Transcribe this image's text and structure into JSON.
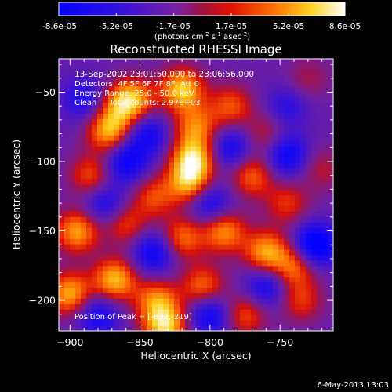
{
  "colorbar": {
    "tick_labels": [
      "-8.6e-05",
      "-5.2e-05",
      "-1.7e-05",
      "1.7e-05",
      "5.2e-05",
      "8.6e-05"
    ],
    "units_prefix": "(photons cm",
    "units_exp1": "-2",
    "units_mid": " s",
    "units_exp2": "-1",
    "units_mid2": " asec",
    "units_exp3": "-2",
    "units_suffix": ")",
    "range": [
      -8.6e-05,
      8.6e-05
    ]
  },
  "chart_data": {
    "type": "heatmap",
    "title": "Reconstructed RHESSI Image",
    "xlabel": "Heliocentric X (arcsec)",
    "ylabel": "Heliocentric Y (arcsec)",
    "xlim": [
      -908,
      -712
    ],
    "ylim": [
      -222,
      -26
    ],
    "x_ticks": [
      -900,
      -850,
      -800,
      -750
    ],
    "y_ticks": [
      -50,
      -100,
      -150,
      -200
    ],
    "x_tick_labels": [
      "−900",
      "−850",
      "−800",
      "−750"
    ],
    "y_tick_labels": [
      "−50",
      "−100",
      "−150",
      "−200"
    ],
    "peak_position": [
      -832,
      -219
    ],
    "colormap": "RHESSI color table (blue-purple-red-orange-yellow-white)",
    "blobs": [
      {
        "x": -872,
        "y": -78,
        "v": 0.9
      },
      {
        "x": -865,
        "y": -60,
        "v": 0.5
      },
      {
        "x": -855,
        "y": -55,
        "v": 0.8
      },
      {
        "x": -820,
        "y": -48,
        "v": 1.0
      },
      {
        "x": -810,
        "y": -75,
        "v": 0.7
      },
      {
        "x": -785,
        "y": -60,
        "v": 0.6
      },
      {
        "x": -760,
        "y": -80,
        "v": 0.4
      },
      {
        "x": -730,
        "y": -40,
        "v": 0.3
      },
      {
        "x": -812,
        "y": -98,
        "v": 1.0
      },
      {
        "x": -815,
        "y": -115,
        "v": 0.85
      },
      {
        "x": -840,
        "y": -125,
        "v": 0.55
      },
      {
        "x": -885,
        "y": -110,
        "v": 0.6
      },
      {
        "x": -770,
        "y": -110,
        "v": 0.65
      },
      {
        "x": -745,
        "y": -130,
        "v": 0.5
      },
      {
        "x": -720,
        "y": -105,
        "v": 0.35
      },
      {
        "x": -895,
        "y": -150,
        "v": 0.85
      },
      {
        "x": -860,
        "y": -145,
        "v": 0.55
      },
      {
        "x": -820,
        "y": -155,
        "v": 0.7
      },
      {
        "x": -790,
        "y": -150,
        "v": 0.8
      },
      {
        "x": -760,
        "y": -165,
        "v": 0.85
      },
      {
        "x": -740,
        "y": -175,
        "v": 0.7
      },
      {
        "x": -900,
        "y": -195,
        "v": 0.9
      },
      {
        "x": -868,
        "y": -185,
        "v": 0.95
      },
      {
        "x": -838,
        "y": -200,
        "v": 0.75
      },
      {
        "x": -832,
        "y": -219,
        "v": 1.0
      },
      {
        "x": -805,
        "y": -190,
        "v": 0.7
      },
      {
        "x": -775,
        "y": -210,
        "v": 0.6
      },
      {
        "x": -735,
        "y": -200,
        "v": 0.5
      },
      {
        "x": -860,
        "y": -100,
        "v": -0.7
      },
      {
        "x": -845,
        "y": -80,
        "v": -0.6
      },
      {
        "x": -890,
        "y": -55,
        "v": -0.5
      },
      {
        "x": -785,
        "y": -90,
        "v": -0.6
      },
      {
        "x": -745,
        "y": -95,
        "v": -0.7
      },
      {
        "x": -725,
        "y": -160,
        "v": -0.95
      },
      {
        "x": -800,
        "y": -130,
        "v": -0.6
      },
      {
        "x": -875,
        "y": -130,
        "v": -0.55
      },
      {
        "x": -840,
        "y": -165,
        "v": -0.7
      },
      {
        "x": -880,
        "y": -210,
        "v": -0.6
      },
      {
        "x": -800,
        "y": -210,
        "v": -0.7
      },
      {
        "x": -760,
        "y": -190,
        "v": -0.6
      },
      {
        "x": -745,
        "y": -60,
        "v": -0.4
      }
    ]
  },
  "annotations": {
    "time_range": "13-Sep-2002 23:01:50.000 to 23:06:56.000",
    "detectors": "Detectors: 4F 5F 6F 7F 8F, Att 0",
    "energy_range": "Energy Range: 25.0 - 50.0 keV",
    "method_counts": "Clean     Total counts: 2.97E+03",
    "peak": "Position of Peak = [-832,-219]"
  },
  "footer": {
    "date": "6-May-2013 13:03"
  }
}
